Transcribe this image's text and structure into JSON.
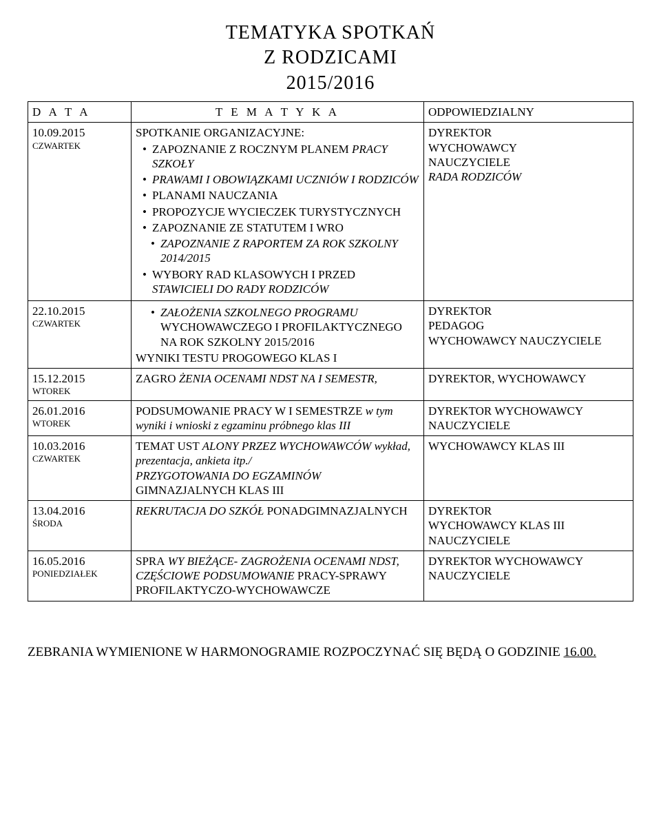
{
  "title": {
    "line1": "TEMATYKA   SPOTKAŃ",
    "line2": "Z   RODZICAMI",
    "line3": "2015/2016"
  },
  "headers": {
    "data": "D A T A",
    "tematyka": "T E M A T Y K A",
    "odp": "ODPOWIEDZIALNY"
  },
  "rows": [
    {
      "date": "10.09.2015",
      "day": "CZWARTEK",
      "tematyka": {
        "lead": "SPOTKANIE  ORGANIZACYJNE:",
        "bullets": [
          {
            "pre": "ZAPOZNANIE  Z ROCZNYM  PLANEM",
            "ital": "PRACY  SZKOŁY",
            "post": ""
          },
          {
            "pre": "",
            "ital": "PRAWAMI I OBOWIĄZKAMI UCZNIÓW I RODZICÓW",
            "post": ""
          },
          {
            "pre": "PLANAMI NAUCZANIA",
            "ital": "",
            "post": ""
          },
          {
            "pre": "PROPOZYCJE WYCIECZEK TURYSTYCZNYCH",
            "ital": "",
            "post": ""
          },
          {
            "pre": "ZAPOZNANIE  ZE  STATUTEM I  WRO",
            "ital": "",
            "post": ""
          },
          {
            "pre": "",
            "ital": "ZAPOZNANIE  Z RAPORTEM ZA ROK SZKOLNY 2014/2015",
            "post": "",
            "indent": true
          },
          {
            "pre": "WYBORY RAD KLASOWYCH I PRZED",
            "ital": "STAWICIELI DO RADY RODZICÓW",
            "post": ""
          }
        ]
      },
      "odp": [
        {
          "text": "DYREKTOR",
          "ital": false
        },
        {
          "text": "WYCHOWAWCY",
          "ital": false
        },
        {
          "text": "NAUCZYCIELE",
          "ital": false
        },
        {
          "text": "RADA  RODZICÓW",
          "ital": true
        }
      ]
    },
    {
      "date": "22.10.2015",
      "day": "CZWARTEK",
      "tematyka": {
        "bullets": [
          {
            "pre": "",
            "ital": "ZAŁOŻENIA SZKOLNEGO PROGRAMU",
            "post": " WYCHOWAWCZEGO I PROFILAKTYCZNEGO NA ROK SZKOLNY 2015/2016",
            "indent": true
          }
        ],
        "trail": "WYNIKI TESTU PROGOWEGO KLAS I"
      },
      "odp": [
        {
          "text": "DYREKTOR",
          "ital": false
        },
        {
          "text": "PEDAGOG",
          "ital": false
        },
        {
          "text": "WYCHOWAWCY NAUCZYCIELE",
          "ital": false
        }
      ]
    },
    {
      "date": "15.12.2015",
      "day": "WTOREK",
      "tematyka": {
        "plain": [
          {
            "pre": "ZAGRO",
            "ital": "ŻENIA OCENAMI NDST NA I SEMESTR,",
            "post": ""
          }
        ]
      },
      "odp": [
        {
          "text": "DYREKTOR, WYCHOWAWCY",
          "ital": false
        }
      ]
    },
    {
      "date": "26.01.2016",
      "day": "WTOREK",
      "tematyka": {
        "plain": [
          {
            "pre": "PODSUMOWANIE  PRACY  W  I  SEMESTRZE ",
            "ital": "w tym wyniki i wnioski z egzaminu próbnego klas III",
            "post": ""
          }
        ]
      },
      "odp": [
        {
          "text": "DYREKTOR WYCHOWAWCY NAUCZYCIELE",
          "ital": false
        }
      ]
    },
    {
      "date": "10.03.2016",
      "day": "CZWARTEK",
      "tematyka": {
        "plain": [
          {
            "pre": "TEMAT UST",
            "ital": "ALONY PRZEZ WYCHOWAWCÓW wykład, prezentacja, ankieta itp./",
            "post": ""
          },
          {
            "pre": "",
            "ital": "PRZYGOTOWANIA DO EGZAMINÓW",
            "post": " GIMNAZJALNYCH KLAS III"
          }
        ]
      },
      "odp": [
        {
          "text": "WYCHOWAWCY KLAS III",
          "ital": false
        }
      ]
    },
    {
      "date": "13.04.2016",
      "day": "ŚRODA",
      "tematyka": {
        "plain": [
          {
            "pre": "",
            "ital": "REKRUTACJA DO SZKÓŁ",
            "post": " PONADGIMNAZJALNYCH"
          }
        ]
      },
      "odp": [
        {
          "text": "DYREKTOR",
          "ital": false
        },
        {
          "text": "WYCHOWAWCY KLAS III",
          "ital": false
        },
        {
          "text": "NAUCZYCIELE",
          "ital": false
        }
      ]
    },
    {
      "date": "16.05.2016",
      "day": "PONIEDZIAŁEK",
      "tematyka": {
        "plain": [
          {
            "pre": "SPRA",
            "ital": "WY  BIEŻĄCE- ZAGROŻENIA OCENAMI NDST, CZĘŚCIOWE  PODSUMOWANIE",
            "post": " PRACY-SPRAWY PROFILAKTYCZO-WYCHOWAWCZE"
          }
        ]
      },
      "odp": [
        {
          "text": "DYREKTOR WYCHOWAWCY NAUCZYCIELE",
          "ital": false
        }
      ]
    }
  ],
  "footer": {
    "pre": "ZEBRANIA   WYMIENIONE   W  HARMONOGRAMIE ROZPOCZYNAĆ  SIĘ  BĘDĄ  O  GODZINIE   ",
    "time": "16.00."
  }
}
